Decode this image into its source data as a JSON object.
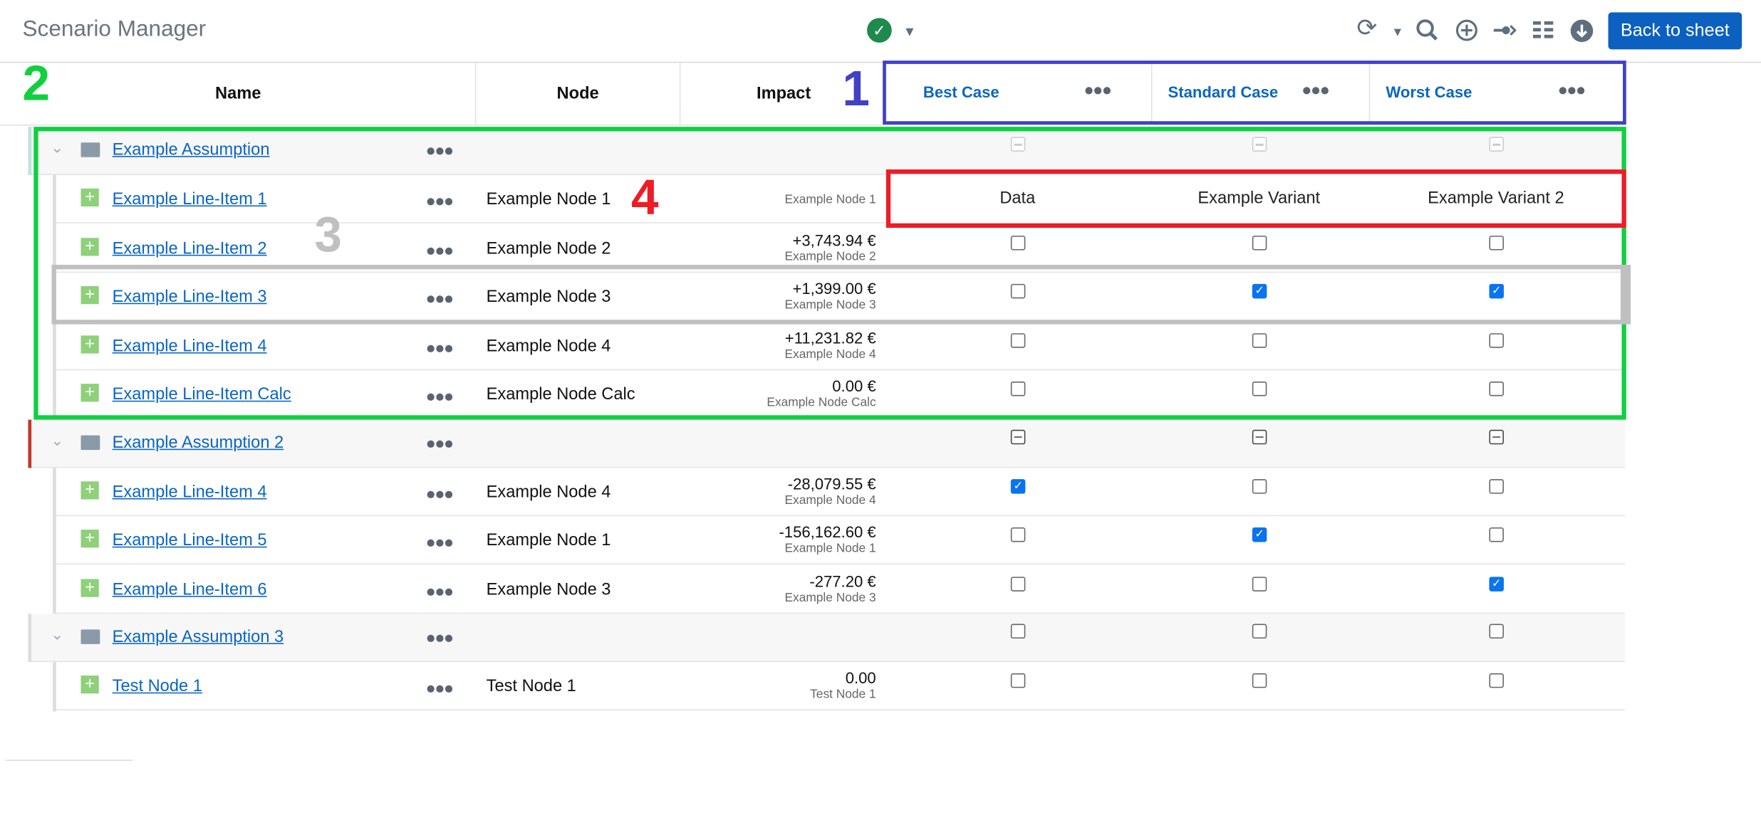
{
  "header": {
    "title": "Scenario Manager",
    "back_label": "Back to sheet",
    "icons": [
      "check-circle-icon",
      "caret-down-icon",
      "refresh-icon",
      "caret-down-icon",
      "search-icon",
      "plus-circle-icon",
      "arrow-link-icon",
      "list-icon",
      "download-icon"
    ]
  },
  "columns": {
    "name": "Name",
    "node": "Node",
    "impact": "Impact"
  },
  "scenarios": [
    {
      "label": "Best Case"
    },
    {
      "label": "Standard Case"
    },
    {
      "label": "Worst Case"
    }
  ],
  "variant_overlay": [
    "Data",
    "Example Variant",
    "Example Variant 2"
  ],
  "annotations": [
    "1",
    "2",
    "3",
    "4"
  ],
  "colors": {
    "accent": "#0a66c2",
    "button": "#0b60c0",
    "box1": "#4040c8",
    "box2": "#10d040",
    "box4": "#ee1c25",
    "box3": "#c0c0c0"
  },
  "groups": [
    {
      "name": "Example Assumption",
      "state": [
        "disabled",
        "disabled",
        "disabled"
      ],
      "bar": "#bde5dd",
      "items": [
        {
          "name": "Example Line-Item 1",
          "node": "Example Node 1",
          "impact": "",
          "sub": "Example Node 1",
          "checks": null
        },
        {
          "name": "Example Line-Item 2",
          "node": "Example Node 2",
          "impact": "+3,743.94 €",
          "sub": "Example Node 2",
          "checks": [
            false,
            false,
            false
          ]
        },
        {
          "name": "Example Line-Item 3",
          "node": "Example Node 3",
          "impact": "+1,399.00 €",
          "sub": "Example Node 3",
          "checks": [
            false,
            true,
            true
          ]
        },
        {
          "name": "Example Line-Item 4",
          "node": "Example Node 4",
          "impact": "+11,231.82 €",
          "sub": "Example Node 4",
          "checks": [
            false,
            false,
            false
          ]
        },
        {
          "name": "Example Line-Item Calc",
          "node": "Example Node Calc",
          "impact": "0.00 €",
          "sub": "Example Node Calc",
          "checks": [
            false,
            false,
            false
          ]
        }
      ]
    },
    {
      "name": "Example Assumption 2",
      "state": [
        "indeterminate",
        "indeterminate",
        "indeterminate"
      ],
      "bar": "#c0392b",
      "items": [
        {
          "name": "Example Line-Item 4",
          "node": "Example Node 4",
          "impact": "-28,079.55 €",
          "sub": "Example Node 4",
          "checks": [
            true,
            false,
            false
          ]
        },
        {
          "name": "Example Line-Item 5",
          "node": "Example Node 1",
          "impact": "-156,162.60 €",
          "sub": "Example Node 1",
          "checks": [
            false,
            true,
            false
          ]
        },
        {
          "name": "Example Line-Item 6",
          "node": "Example Node 3",
          "impact": "-277.20 €",
          "sub": "Example Node 3",
          "checks": [
            false,
            false,
            true
          ]
        }
      ]
    },
    {
      "name": "Example Assumption 3",
      "state": [
        "empty",
        "empty",
        "empty"
      ],
      "bar": "#dddddd",
      "items": [
        {
          "name": "Test Node 1",
          "node": "Test Node 1",
          "impact": "0.00",
          "sub": "Test Node 1",
          "checks": [
            false,
            false,
            false
          ]
        }
      ]
    }
  ]
}
